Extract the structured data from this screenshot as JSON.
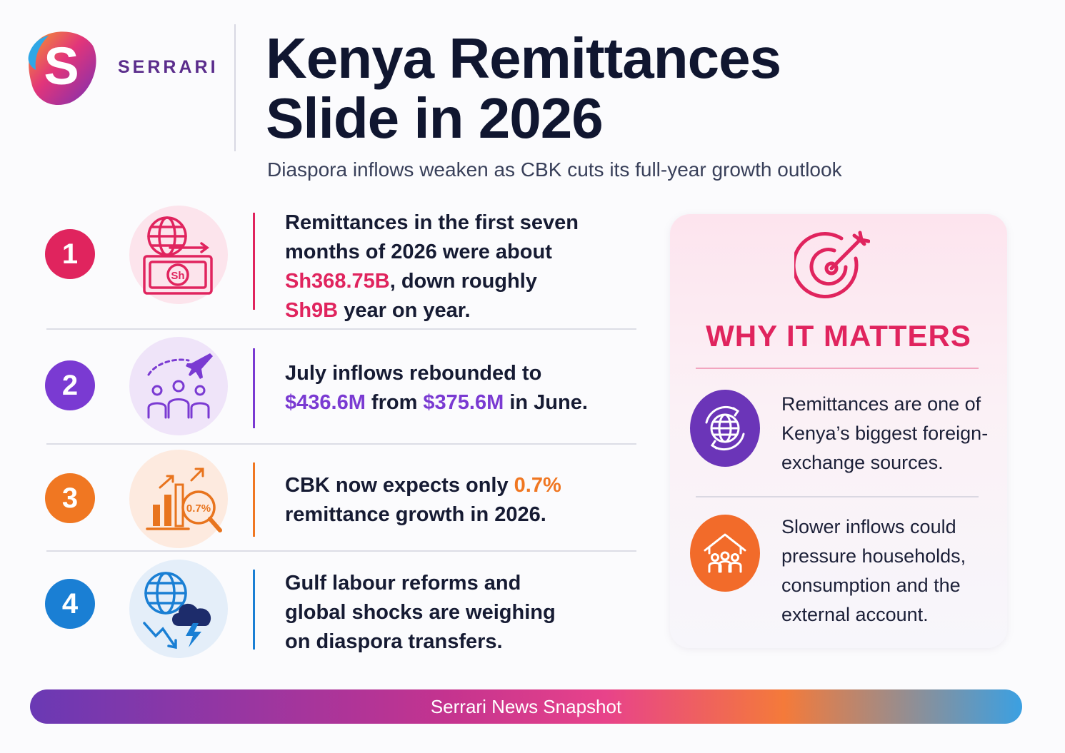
{
  "brand": {
    "name": "SERRARI",
    "logo_letter": "S"
  },
  "header": {
    "title_line1": "Kenya Remittances",
    "title_line2": "Slide in 2026",
    "subtitle": "Diaspora inflows weaken as CBK cuts its full-year growth outlook"
  },
  "points": [
    {
      "number": "1",
      "icon": "globe-banknote-icon",
      "color": "#e0245e",
      "lines": [
        [
          {
            "t": "Remittances in the first seven"
          }
        ],
        [
          {
            "t": "months of 2026 were about"
          }
        ],
        [
          {
            "t": "Sh368.75B",
            "hl": "pink"
          },
          {
            "t": ", down roughly"
          }
        ],
        [
          {
            "t": "Sh9B",
            "hl": "pink"
          },
          {
            "t": " year on year."
          }
        ]
      ],
      "icon_text": "Sh"
    },
    {
      "number": "2",
      "icon": "plane-people-icon",
      "color": "#7a3ad2",
      "lines": [
        [
          {
            "t": "July inflows rebounded to"
          }
        ],
        [
          {
            "t": "$436.6M",
            "hl": "purple"
          },
          {
            "t": " from "
          },
          {
            "t": "$375.6M",
            "hl": "purple"
          },
          {
            "t": " in June."
          }
        ]
      ]
    },
    {
      "number": "3",
      "icon": "bar-chart-magnifier-icon",
      "color": "#f07722",
      "lines": [
        [
          {
            "t": "CBK now expects only "
          },
          {
            "t": "0.7%",
            "hl": "orange"
          }
        ],
        [
          {
            "t": "remittance growth in 2026."
          }
        ]
      ],
      "icon_text": "0.7%"
    },
    {
      "number": "4",
      "icon": "globe-storm-icon",
      "color": "#1a7fd4",
      "lines": [
        [
          {
            "t": "Gulf labour reforms and"
          }
        ],
        [
          {
            "t": "global shocks are weighing"
          }
        ],
        [
          {
            "t": "on diaspora transfers."
          }
        ]
      ]
    }
  ],
  "why_it_matters": {
    "heading": "WHY IT MATTERS",
    "items": [
      {
        "icon": "globe-exchange-icon",
        "color": "#6b35b8",
        "lines": [
          "Remittances are one of",
          "Kenya’s biggest foreign-",
          "exchange sources."
        ]
      },
      {
        "icon": "house-family-icon",
        "color": "#f26b2a",
        "lines": [
          "Slower inflows could",
          "pressure households,",
          "consumption and the",
          "external account."
        ]
      }
    ]
  },
  "footer": {
    "label": "Serrari News Snapshot"
  }
}
